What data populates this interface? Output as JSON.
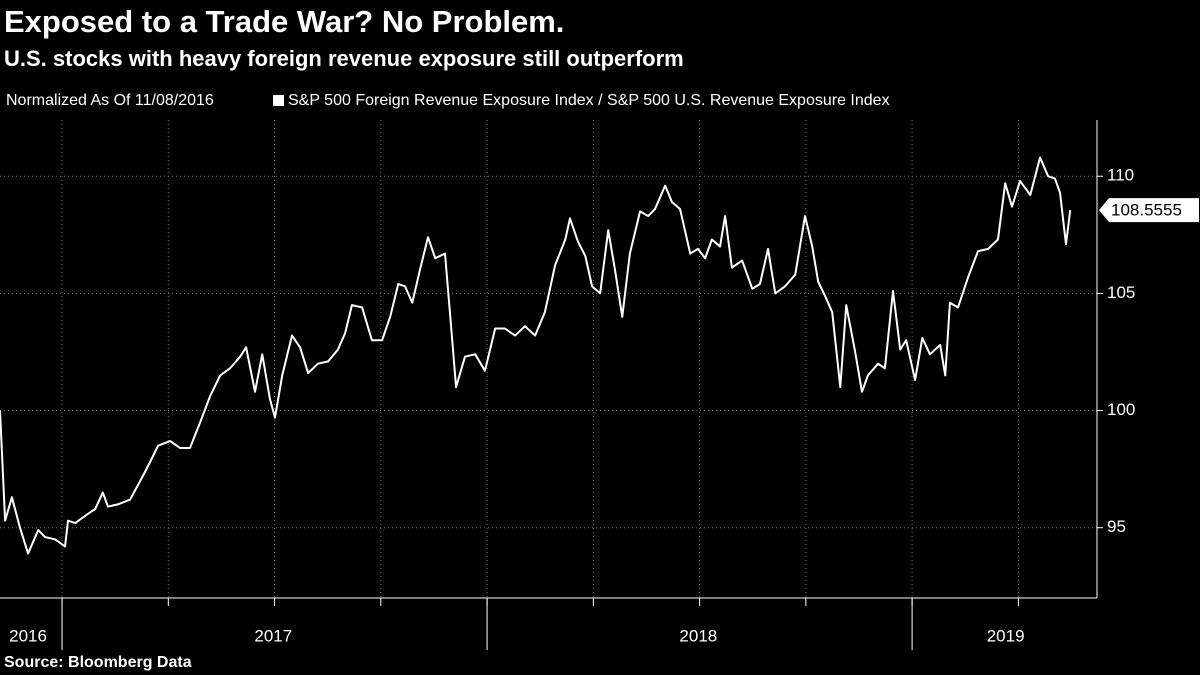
{
  "chart_data": {
    "type": "line",
    "title": "Exposed to a Trade War? No Problem.",
    "subtitle": "U.S. stocks with heavy foreign revenue exposure still outperform",
    "note": "Normalized As Of 11/08/2016",
    "source": "Source: Bloomberg Data",
    "x": [
      2016.854,
      2016.866,
      2016.882,
      2016.901,
      2016.92,
      2016.944,
      2016.96,
      2016.984,
      2017.007,
      2017.014,
      2017.031,
      2017.054,
      2017.078,
      2017.096,
      2017.108,
      2017.132,
      2017.16,
      2017.184,
      2017.207,
      2017.226,
      2017.254,
      2017.278,
      2017.301,
      2017.325,
      2017.348,
      2017.372,
      2017.395,
      2017.419,
      2017.433,
      2017.454,
      2017.471,
      2017.489,
      2017.501,
      2017.518,
      2017.541,
      2017.56,
      2017.579,
      2017.602,
      2017.626,
      2017.649,
      2017.666,
      2017.682,
      2017.706,
      2017.729,
      2017.753,
      2017.772,
      2017.791,
      2017.807,
      2017.824,
      2017.842,
      2017.861,
      2017.878,
      2017.901,
      2017.918,
      2017.927,
      2017.948,
      2017.972,
      2017.995,
      2018.019,
      2018.042,
      2018.066,
      2018.089,
      2018.113,
      2018.136,
      2018.16,
      2018.184,
      2018.195,
      2018.214,
      2018.231,
      2018.247,
      2018.266,
      2018.285,
      2018.301,
      2018.318,
      2018.336,
      2018.36,
      2018.379,
      2018.395,
      2018.419,
      2018.435,
      2018.454,
      2018.478,
      2018.496,
      2018.513,
      2018.529,
      2018.548,
      2018.56,
      2018.576,
      2018.6,
      2018.624,
      2018.642,
      2018.661,
      2018.678,
      2018.701,
      2018.725,
      2018.748,
      2018.765,
      2018.779,
      2018.795,
      2018.812,
      2018.831,
      2018.845,
      2018.866,
      2018.882,
      2018.896,
      2018.92,
      2018.936,
      2018.955,
      2018.972,
      2018.986,
      2019.007,
      2019.024,
      2019.042,
      2019.066,
      2019.078,
      2019.089,
      2019.108,
      2019.132,
      2019.155,
      2019.179,
      2019.202,
      2019.219,
      2019.235,
      2019.254,
      2019.278,
      2019.301,
      2019.32,
      2019.336,
      2019.348,
      2019.362,
      2019.372
    ],
    "series": [
      {
        "name": "S&P 500 Foreign Revenue Exposure Index / S&P 500 U.S. Revenue Exposure Index",
        "color": "#ffffff",
        "values": [
          100,
          95.3,
          96.3,
          95,
          93.9,
          94.9,
          94.6,
          94.5,
          94.2,
          95.3,
          95.2,
          95.5,
          95.8,
          96.5,
          95.9,
          96.0,
          96.2,
          97.0,
          97.8,
          98.5,
          98.7,
          98.4,
          98.4,
          99.5,
          100.6,
          101.5,
          101.8,
          102.3,
          102.7,
          100.8,
          102.4,
          100.5,
          99.7,
          101.5,
          103.2,
          102.7,
          101.6,
          102.0,
          102.1,
          102.6,
          103.3,
          104.5,
          104.4,
          103.0,
          103.0,
          104.0,
          105.4,
          105.3,
          104.6,
          106.0,
          107.4,
          106.5,
          106.7,
          103.0,
          101.0,
          102.3,
          102.4,
          101.7,
          103.5,
          103.5,
          103.2,
          103.6,
          103.2,
          104.2,
          106.2,
          107.3,
          108.2,
          107.2,
          106.6,
          105.3,
          105.0,
          107.7,
          106.0,
          104.0,
          106.7,
          108.5,
          108.3,
          108.6,
          109.6,
          108.9,
          108.6,
          106.7,
          106.9,
          106.5,
          107.3,
          107.0,
          108.3,
          106.1,
          106.4,
          105.2,
          105.4,
          106.9,
          105.0,
          105.3,
          105.8,
          108.3,
          107.0,
          105.5,
          104.9,
          104.2,
          101.0,
          104.5,
          102.5,
          100.8,
          101.5,
          102.0,
          101.8,
          105.1,
          102.6,
          103.0,
          101.3,
          103.1,
          102.4,
          102.8,
          101.5,
          104.6,
          104.4,
          105.7,
          106.8,
          106.9,
          107.3,
          109.7,
          108.7,
          109.8,
          109.2,
          110.8,
          110.0,
          109.9,
          109.3,
          107.1,
          108.5555
        ]
      }
    ],
    "xlim": [
      2016.854,
      2019.435
    ],
    "ylim": [
      92,
      112.4
    ],
    "yticks": [
      95,
      100,
      105,
      110
    ],
    "xticks": [
      {
        "value": 2016.92,
        "label": "2016"
      },
      {
        "value": 2017.497,
        "label": "2017"
      },
      {
        "value": 2018.497,
        "label": "2018"
      },
      {
        "value": 2019.22,
        "label": "2019"
      }
    ],
    "year_breaks": [
      2017,
      2018,
      2019
    ],
    "xgrid": [
      2017,
      2017.25,
      2017.5,
      2017.75,
      2018,
      2018.25,
      2018.5,
      2018.75,
      2019,
      2019.25
    ],
    "grid": true
  }
}
